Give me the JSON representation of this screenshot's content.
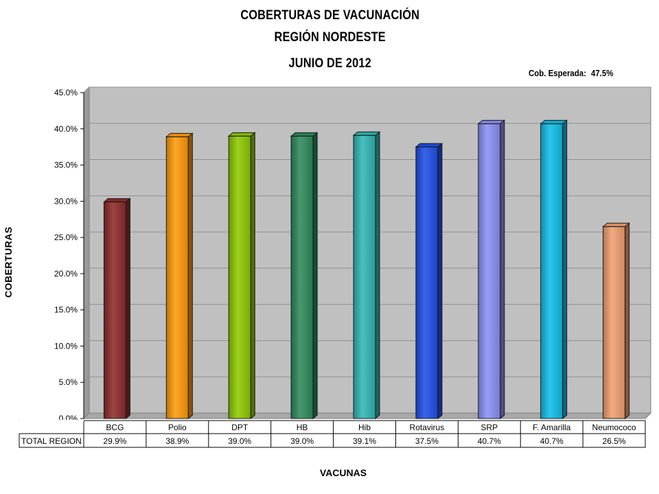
{
  "chart_data": {
    "type": "bar",
    "title": "COBERTURAS DE VACUNACIÓN",
    "subtitle": "REGIÓN NORDESTE",
    "period": "JUNIO DE 2012",
    "expected_label": "Cob. Esperada:",
    "expected_value": "47.5%",
    "ylabel": "COBERTURAS",
    "xlabel": "VACUNAS",
    "table_row_label": "TOTAL REGION",
    "ylim": [
      0,
      45
    ],
    "yticks": [
      "0.0%",
      "5.0%",
      "10.0%",
      "15.0%",
      "20.0%",
      "25.0%",
      "30.0%",
      "35.0%",
      "40.0%",
      "45.0%"
    ],
    "categories": [
      "BCG",
      "Polio",
      "DPT",
      "HB",
      "Hib",
      "Rotavirus",
      "SRP",
      "F. Amarilla",
      "Neumococo"
    ],
    "values": [
      29.9,
      38.9,
      39.0,
      39.0,
      39.1,
      37.5,
      40.7,
      40.7,
      26.5
    ],
    "value_labels": [
      "29.9%",
      "38.9%",
      "39.0%",
      "39.0%",
      "39.1%",
      "37.5%",
      "40.7%",
      "40.7%",
      "26.5%"
    ],
    "colors": [
      "#8e2b2b",
      "#ff9a0a",
      "#8fca00",
      "#2e8b5a",
      "#2fb8b4",
      "#1f4fe8",
      "#8c90f5",
      "#10bde8",
      "#f0a070"
    ],
    "plot_background": "#c0c0c0",
    "grid": true,
    "legend": "none"
  }
}
